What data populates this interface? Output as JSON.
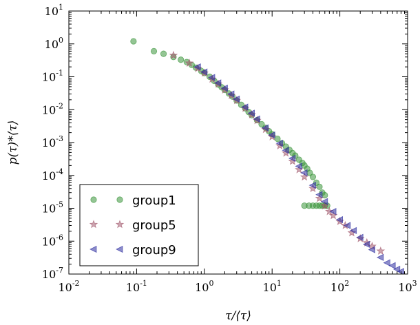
{
  "chart_data": {
    "type": "scatter",
    "title": "",
    "xlabel": "τ/⟨τ⟩",
    "ylabel": "p(τ)*⟨τ⟩",
    "xscale": "log",
    "yscale": "log",
    "xlim": [
      0.01,
      1000
    ],
    "ylim": [
      1e-07,
      10
    ],
    "grid": false,
    "legend_position": "lower-left",
    "x_ticks": [
      {
        "base": "10",
        "exp": "-2"
      },
      {
        "base": "10",
        "exp": "-1"
      },
      {
        "base": "10",
        "exp": "0"
      },
      {
        "base": "10",
        "exp": "1"
      },
      {
        "base": "10",
        "exp": "2"
      },
      {
        "base": "10",
        "exp": "3"
      }
    ],
    "y_ticks": [
      {
        "base": "10",
        "exp": "-7"
      },
      {
        "base": "10",
        "exp": "-6"
      },
      {
        "base": "10",
        "exp": "-5"
      },
      {
        "base": "10",
        "exp": "-4"
      },
      {
        "base": "10",
        "exp": "-3"
      },
      {
        "base": "10",
        "exp": "-2"
      },
      {
        "base": "10",
        "exp": "-1"
      },
      {
        "base": "10",
        "exp": "0"
      },
      {
        "base": "10",
        "exp": "1"
      }
    ],
    "series": [
      {
        "name": "group1",
        "marker": "circle",
        "color": "#3c963c",
        "x": [
          0.09,
          0.18,
          0.25,
          0.35,
          0.45,
          0.55,
          0.65,
          0.75,
          0.9,
          1.0,
          1.2,
          1.4,
          1.6,
          1.8,
          2.0,
          2.3,
          2.6,
          3.0,
          3.5,
          4.0,
          4.5,
          5.0,
          6.0,
          7.0,
          8.0,
          9.0,
          10,
          12,
          14,
          16,
          18,
          20,
          22,
          25,
          28,
          30,
          33,
          36,
          40,
          45,
          50,
          55,
          60,
          30,
          35,
          40,
          45,
          50,
          55,
          60,
          65
        ],
        "y": [
          1.2,
          0.6,
          0.5,
          0.4,
          0.33,
          0.28,
          0.23,
          0.19,
          0.15,
          0.13,
          0.1,
          0.075,
          0.058,
          0.048,
          0.04,
          0.031,
          0.025,
          0.019,
          0.014,
          0.011,
          0.0085,
          0.0068,
          0.0048,
          0.0036,
          0.0028,
          0.0022,
          0.0018,
          0.0013,
          0.00095,
          0.00075,
          0.0006,
          0.00048,
          0.0004,
          0.0003,
          0.00024,
          0.0002,
          0.00016,
          0.00012,
          9e-05,
          6e-05,
          4.5e-05,
          3e-05,
          2.5e-05,
          1.2e-05,
          1.2e-05,
          1.2e-05,
          1.2e-05,
          1.2e-05,
          1.2e-05,
          1.2e-05,
          1.2e-05
        ]
      },
      {
        "name": "group5",
        "marker": "star",
        "color": "#a35a6e",
        "x": [
          0.35,
          0.6,
          0.8,
          1.0,
          1.3,
          1.6,
          2.0,
          2.5,
          3.0,
          4.0,
          5.0,
          6.0,
          8.0,
          10,
          13,
          16,
          20,
          25,
          30,
          40,
          50,
          60,
          70,
          80,
          100,
          120,
          150,
          200,
          250,
          300,
          400
        ],
        "y": [
          0.45,
          0.26,
          0.18,
          0.13,
          0.085,
          0.06,
          0.04,
          0.027,
          0.019,
          0.011,
          0.007,
          0.0047,
          0.0025,
          0.0015,
          0.0008,
          0.00048,
          0.00027,
          0.00015,
          9e-05,
          4e-05,
          2e-05,
          1.2e-05,
          8e-06,
          6e-06,
          4e-06,
          3e-06,
          1.8e-06,
          1.2e-06,
          9e-07,
          7e-07,
          5e-07
        ]
      },
      {
        "name": "group9",
        "marker": "triangle-left",
        "color": "#2d2ea0",
        "x": [
          0.8,
          1.0,
          1.3,
          1.6,
          2.0,
          2.5,
          3.0,
          4.0,
          5.0,
          6.0,
          8.0,
          10,
          13,
          16,
          20,
          25,
          30,
          40,
          50,
          60,
          80,
          100,
          130,
          160,
          200,
          250,
          300,
          400,
          500,
          600,
          700,
          800
        ],
        "y": [
          0.2,
          0.14,
          0.095,
          0.065,
          0.045,
          0.03,
          0.021,
          0.012,
          0.0078,
          0.0052,
          0.0028,
          0.0017,
          0.00095,
          0.00058,
          0.00033,
          0.00019,
          0.00012,
          5e-05,
          2.6e-05,
          1.6e-05,
          8e-06,
          4.5e-06,
          3e-06,
          2.1e-06,
          1.3e-06,
          8e-07,
          5.5e-07,
          3.2e-07,
          2.2e-07,
          1.8e-07,
          1.4e-07,
          1.2e-07
        ]
      }
    ]
  }
}
